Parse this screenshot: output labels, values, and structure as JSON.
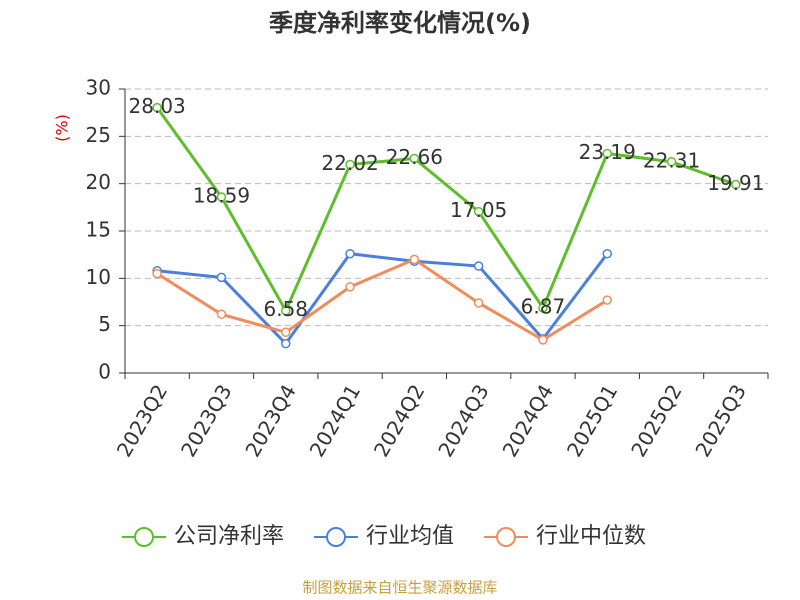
{
  "chart_data": {
    "type": "line",
    "title": "季度净利率变化情况(%)",
    "y_label": "(%)",
    "categories": [
      "2023Q2",
      "2023Q3",
      "2023Q4",
      "2024Q1",
      "2024Q2",
      "2024Q3",
      "2024Q4",
      "2025Q1",
      "2025Q2",
      "2025Q3"
    ],
    "series": [
      {
        "name": "公司净利率",
        "color": "#5cbf2a",
        "values": [
          28.03,
          18.59,
          6.58,
          22.02,
          22.66,
          17.05,
          6.87,
          23.19,
          22.31,
          19.91
        ]
      },
      {
        "name": "行业均值",
        "color": "#4a7fdc",
        "values": [
          10.8,
          10.1,
          3.1,
          12.6,
          11.8,
          11.3,
          3.6,
          12.6,
          null,
          null
        ]
      },
      {
        "name": "行业中位数",
        "color": "#f28c5a",
        "values": [
          10.5,
          6.2,
          4.3,
          9.1,
          12.0,
          7.4,
          3.5,
          7.7,
          null,
          null
        ]
      }
    ],
    "ylim": [
      0,
      30
    ],
    "yticks": [
      0,
      5,
      10,
      15,
      20,
      25,
      30
    ],
    "grid": true,
    "source": "制图数据来自恒生聚源数据库"
  }
}
